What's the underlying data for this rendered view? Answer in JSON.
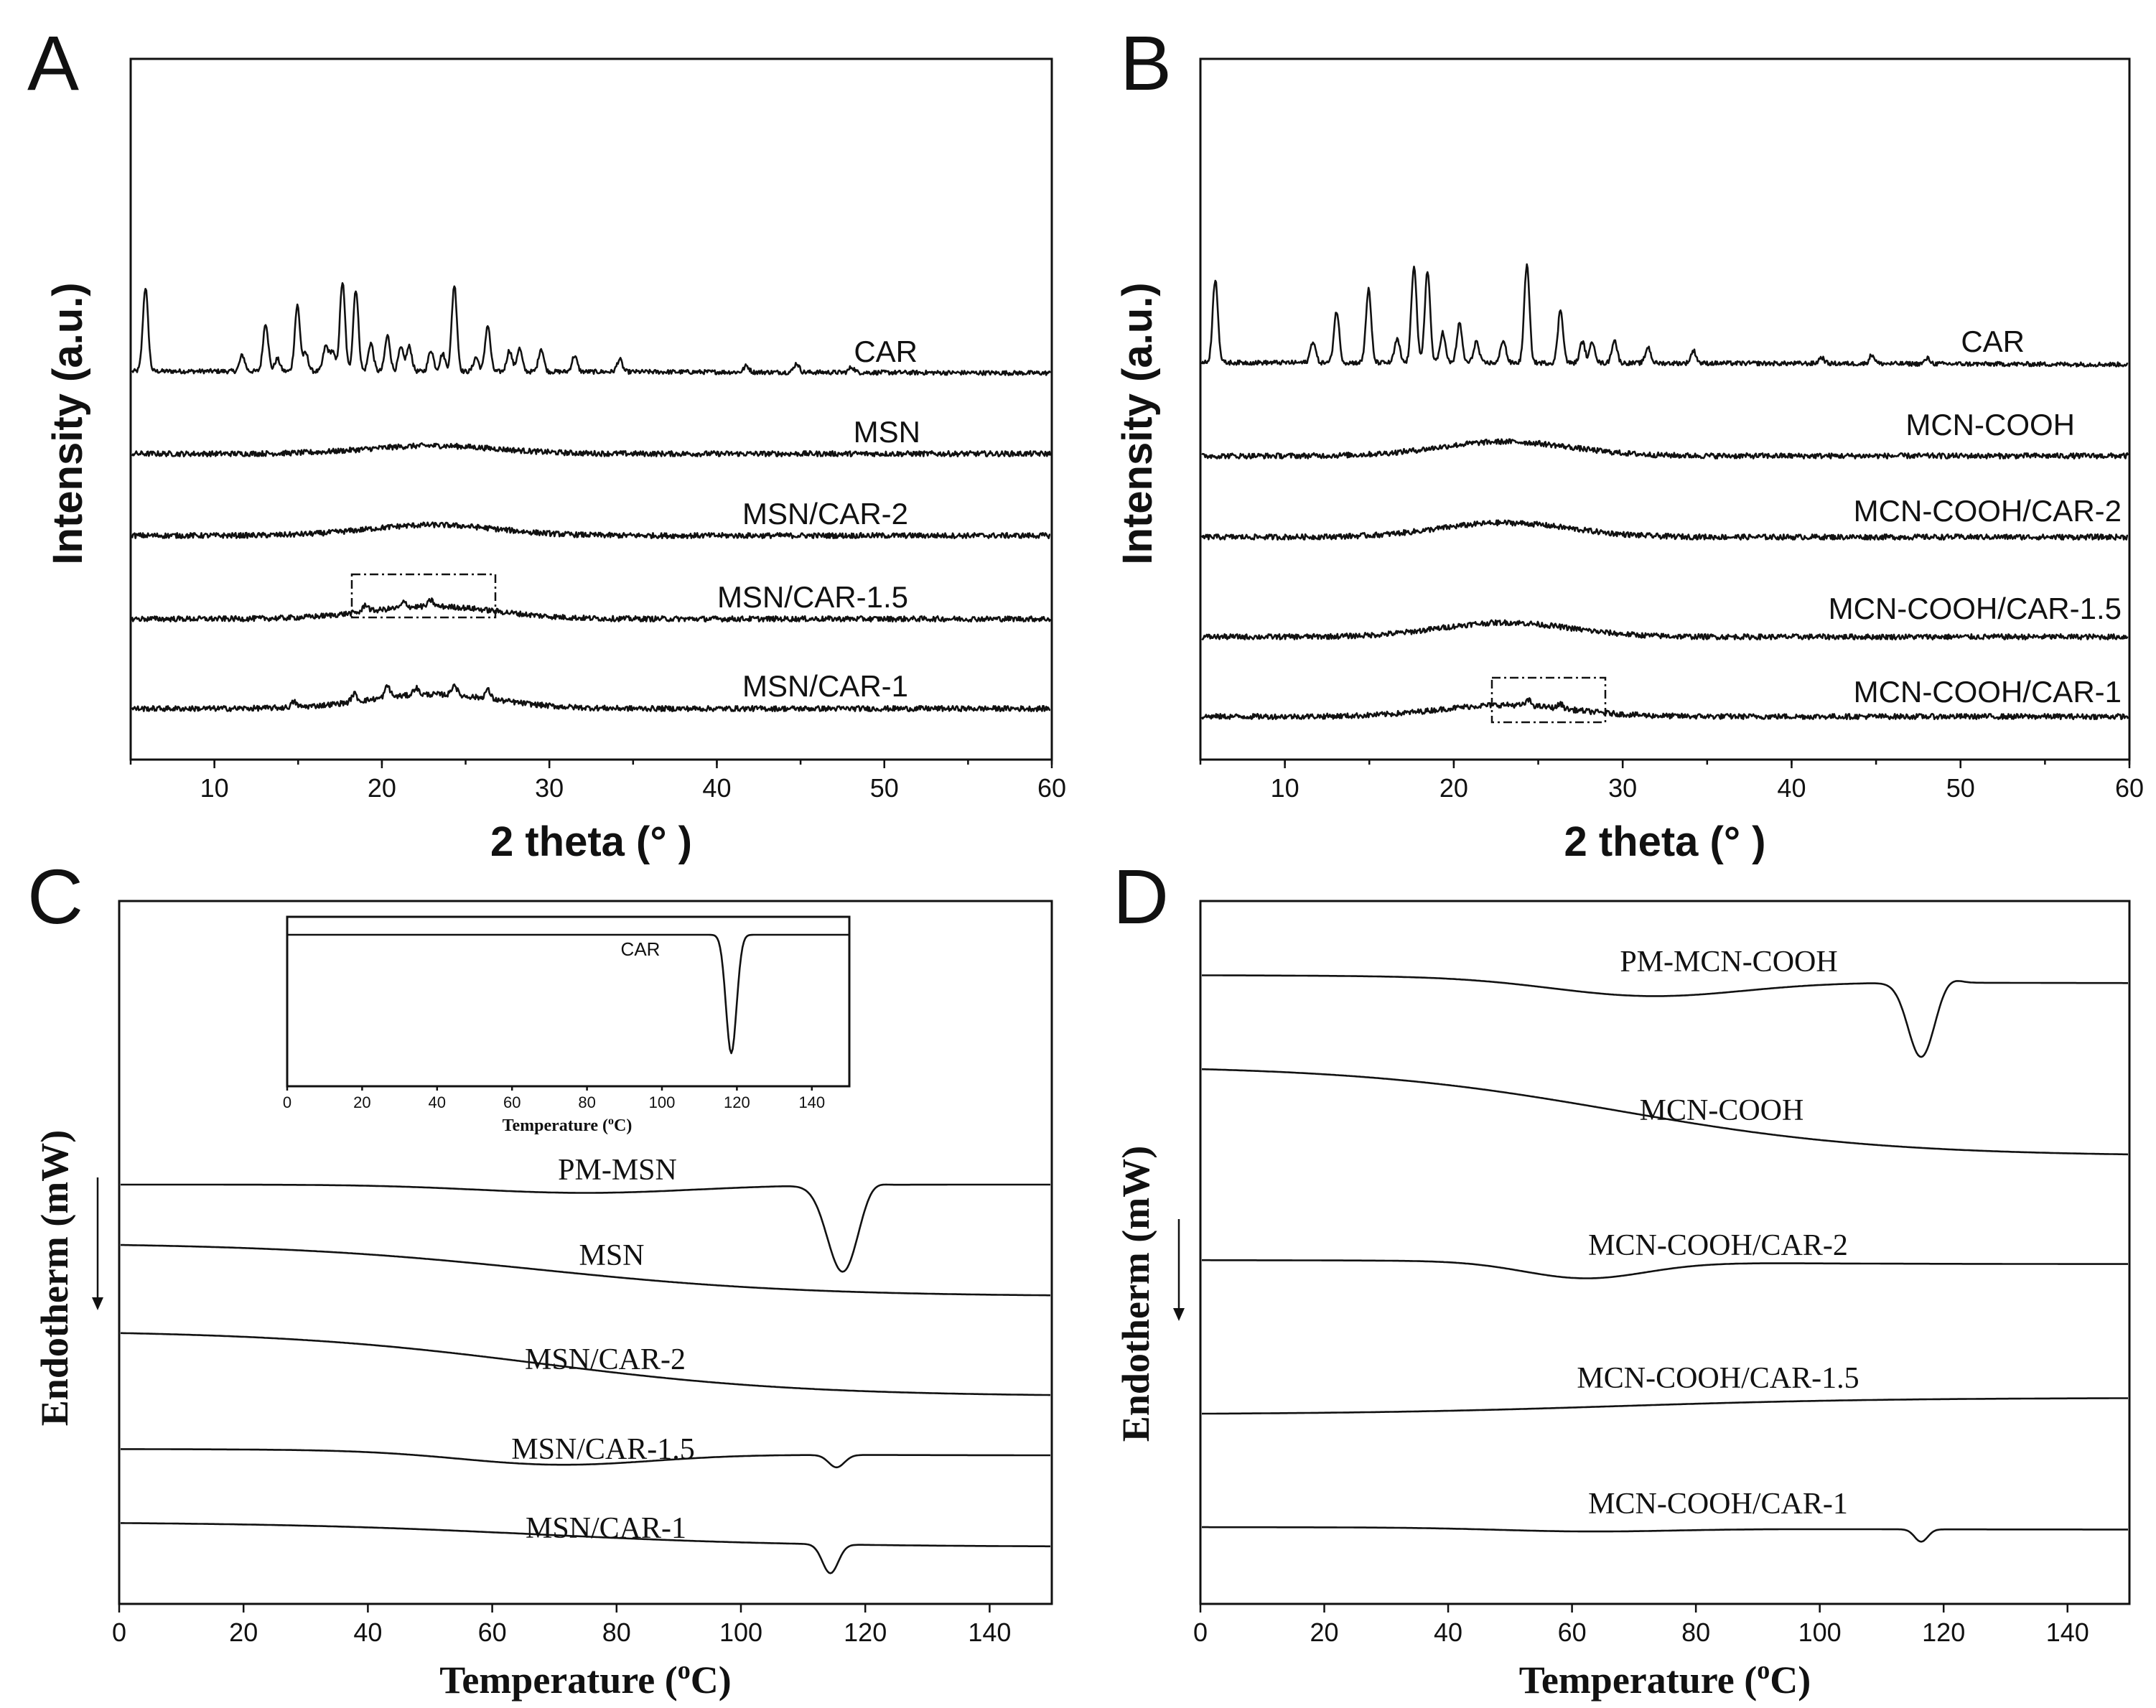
{
  "chart_data": [
    {
      "panel": "A",
      "type": "line",
      "kind": "xrd",
      "xlabel": "2 theta (°  )",
      "ylabel": "Intensity (a.u.)",
      "xlim": [
        5,
        60
      ],
      "xticks": [
        "10",
        "20",
        "30",
        "40",
        "50",
        "60"
      ],
      "series": [
        {
          "name": "CAR",
          "baseline": 0.8,
          "peaks": [
            [
              5.8,
              9.4
            ],
            [
              11.6,
              1.8
            ],
            [
              13.0,
              5.4
            ],
            [
              13.7,
              1.4
            ],
            [
              14.9,
              7.4
            ],
            [
              15.4,
              2.0
            ],
            [
              16.6,
              2.8
            ],
            [
              17.0,
              2.2
            ],
            [
              17.6,
              10.0
            ],
            [
              18.4,
              9.2
            ],
            [
              19.3,
              3.2
            ],
            [
              20.3,
              4.0
            ],
            [
              21.1,
              2.6
            ],
            [
              21.6,
              2.8
            ],
            [
              22.9,
              2.4
            ],
            [
              23.6,
              2.0
            ],
            [
              24.3,
              9.7
            ],
            [
              25.6,
              1.6
            ],
            [
              26.3,
              5.2
            ],
            [
              27.6,
              2.4
            ],
            [
              28.2,
              2.6
            ],
            [
              29.5,
              2.6
            ],
            [
              31.5,
              1.8
            ],
            [
              34.2,
              1.4
            ],
            [
              41.8,
              0.7
            ],
            [
              44.8,
              1.0
            ],
            [
              48.1,
              0.6
            ]
          ],
          "hump": 0,
          "noise": 0.25
        },
        {
          "name": "MSN",
          "baseline": 0,
          "peaks": [],
          "hump": 0.9,
          "noise": 0.3
        },
        {
          "name": "MSN/CAR-2",
          "baseline": 0,
          "peaks": [],
          "hump": 1.2,
          "noise": 0.3
        },
        {
          "name": "MSN/CAR-1.5",
          "baseline": 0,
          "peaks": [
            [
              19.0,
              0.8
            ],
            [
              21.3,
              0.6
            ],
            [
              22.9,
              0.7
            ]
          ],
          "hump": 1.4,
          "noise": 0.3
        },
        {
          "name": "MSN/CAR-1",
          "baseline": 0,
          "peaks": [
            [
              14.7,
              0.6
            ],
            [
              18.3,
              0.9
            ],
            [
              20.3,
              1.3
            ],
            [
              22.0,
              0.8
            ],
            [
              24.3,
              1.2
            ],
            [
              26.3,
              1.0
            ]
          ],
          "hump": 1.6,
          "noise": 0.3
        }
      ],
      "annotation": "dashed box around 18–27° on MSN/CAR-1.5"
    },
    {
      "panel": "B",
      "type": "line",
      "kind": "xrd",
      "xlabel": "2 theta (°  )",
      "ylabel": "Intensity (a.u.)",
      "xlim": [
        5,
        60
      ],
      "xticks": [
        "10",
        "20",
        "30",
        "40",
        "50",
        "60"
      ],
      "series": [
        {
          "name": "CAR",
          "baseline": 0.8,
          "peaks": [
            [
              5.8,
              9.4
            ],
            [
              11.6,
              2.4
            ],
            [
              13.0,
              5.8
            ],
            [
              14.9,
              8.2
            ],
            [
              16.6,
              2.6
            ],
            [
              17.6,
              11.0
            ],
            [
              18.4,
              10.4
            ],
            [
              19.3,
              3.4
            ],
            [
              20.3,
              4.4
            ],
            [
              21.3,
              2.4
            ],
            [
              22.9,
              2.6
            ],
            [
              24.3,
              11.0
            ],
            [
              26.3,
              6.0
            ],
            [
              27.6,
              2.4
            ],
            [
              28.2,
              2.4
            ],
            [
              29.5,
              2.6
            ],
            [
              31.5,
              1.8
            ],
            [
              34.2,
              1.4
            ],
            [
              41.8,
              0.7
            ],
            [
              44.8,
              1.0
            ],
            [
              48.1,
              0.6
            ]
          ],
          "hump": 0,
          "noise": 0.25
        },
        {
          "name": "MCN-COOH",
          "baseline": 0,
          "peaks": [],
          "hump": 1.6,
          "noise": 0.3
        },
        {
          "name": "MCN-COOH/CAR-2",
          "baseline": 0,
          "peaks": [],
          "hump": 1.6,
          "noise": 0.3
        },
        {
          "name": "MCN-COOH/CAR-1.5",
          "baseline": 0,
          "peaks": [],
          "hump": 1.6,
          "noise": 0.3
        },
        {
          "name": "MCN-COOH/CAR-1",
          "baseline": 0,
          "peaks": [
            [
              24.4,
              0.6
            ],
            [
              26.3,
              0.5
            ]
          ],
          "hump": 1.3,
          "noise": 0.3
        }
      ],
      "annotation": "dashed box around 22–29° on MCN-COOH/CAR-1"
    },
    {
      "panel": "C",
      "type": "line",
      "kind": "dsc",
      "xlabel": "Temperature (",
      "xlabel_sup": "o",
      "xlabel_end": "C)",
      "ylabel": "Endotherm (mW)",
      "xlim": [
        0,
        150
      ],
      "xticks": [
        "0",
        "20",
        "40",
        "60",
        "80",
        "100",
        "120",
        "140"
      ],
      "series": [
        {
          "name": "PM-MSN",
          "start": 0,
          "end": 0,
          "dipCenter": 75,
          "dipWidth": 25,
          "dipDepth": 1.0,
          "melt": [
            116.5,
            3.5,
            10.5
          ],
          "recovery": 0.8
        },
        {
          "name": "MSN",
          "start": 0,
          "end": -6.5,
          "dipCenter": 0,
          "dipWidth": 1,
          "dipDepth": 0,
          "melt": [
            116.5,
            1,
            0
          ],
          "recovery": 0
        },
        {
          "name": "MSN/CAR-2",
          "start": 0,
          "end": -8.0,
          "dipCenter": 0,
          "dipWidth": 1,
          "dipDepth": 0,
          "melt": [
            116.5,
            1,
            0
          ],
          "recovery": 0
        },
        {
          "name": "MSN/CAR-1.5",
          "start": 0,
          "end": -0.8,
          "dipCenter": 70,
          "dipWidth": 22,
          "dipDepth": 1.5,
          "melt": [
            115.5,
            1.8,
            1.5
          ],
          "recovery": 0
        },
        {
          "name": "MSN/CAR-1",
          "start": 0,
          "end": -3.0,
          "dipCenter": 0,
          "dipWidth": 1,
          "dipDepth": 0,
          "melt": [
            114.5,
            1.8,
            3.5
          ],
          "recovery": 0
        }
      ],
      "inset": {
        "label": "CAR",
        "xlim": [
          0,
          150
        ],
        "xticks": [
          "0",
          "20",
          "40",
          "60",
          "80",
          "100",
          "120",
          "140"
        ],
        "xlabel": "Temperature (",
        "xlabel_sup": "o",
        "xlabel_end": "C)",
        "melt": [
          118.5,
          2.0
        ]
      }
    },
    {
      "panel": "D",
      "type": "line",
      "kind": "dsc",
      "xlabel": "Temperature (",
      "xlabel_sup": "o",
      "xlabel_end": "C)",
      "ylabel": "Endotherm (mW)",
      "xlim": [
        0,
        150
      ],
      "xticks": [
        "0",
        "20",
        "40",
        "60",
        "80",
        "100",
        "120",
        "140"
      ],
      "series": [
        {
          "name": "PM-MCN-COOH",
          "start": 0,
          "end": -1.0,
          "dipCenter": 72,
          "dipWidth": 22,
          "dipDepth": 2.0,
          "melt": [
            116.5,
            3.0,
            9.0
          ],
          "recovery": 0.6
        },
        {
          "name": "MCN-COOH",
          "start": 0,
          "end": -11.0,
          "dipCenter": 0,
          "dipWidth": 1,
          "dipDepth": 0,
          "melt": [
            116.5,
            1,
            0
          ],
          "recovery": 0
        },
        {
          "name": "MCN-COOH/CAR-2",
          "start": 0,
          "end": -0.5,
          "dipCenter": 62,
          "dipWidth": 14,
          "dipDepth": 2.0,
          "melt": [
            116.5,
            1,
            0
          ],
          "recovery": 0
        },
        {
          "name": "MCN-COOH/CAR-1.5",
          "start": 0,
          "end": 2.0,
          "dipCenter": 0,
          "dipWidth": 1,
          "dipDepth": 0,
          "melt": [
            116.5,
            1,
            0
          ],
          "recovery": 0
        },
        {
          "name": "MCN-COOH/CAR-1",
          "start": 0,
          "end": -0.3,
          "dipCenter": 62,
          "dipWidth": 20,
          "dipDepth": 0.4,
          "melt": [
            116.5,
            1.5,
            1.5
          ],
          "recovery": 0
        }
      ]
    }
  ]
}
